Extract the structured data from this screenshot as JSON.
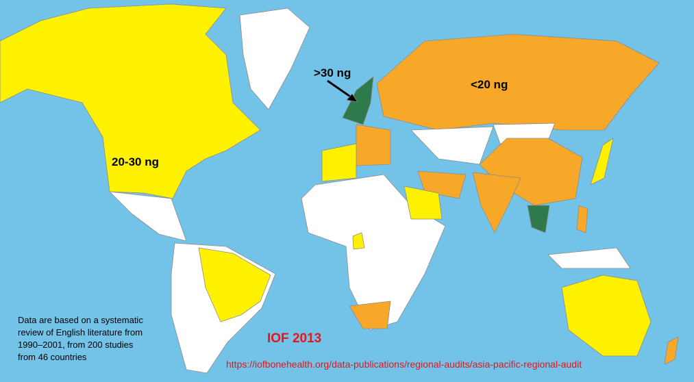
{
  "labels": {
    "high": ">30 ng",
    "low": "<20 ng",
    "mid": "20-30 ng"
  },
  "note": [
    "Data are based on a systematic",
    "review of English literature from",
    "1990–2001, from 200 studies",
    "from 46 countries"
  ],
  "credit": "IOF 2013",
  "url": "https://iofbonehealth.org/data-publications/regional-audits/asia-pacific-regional-audit"
}
